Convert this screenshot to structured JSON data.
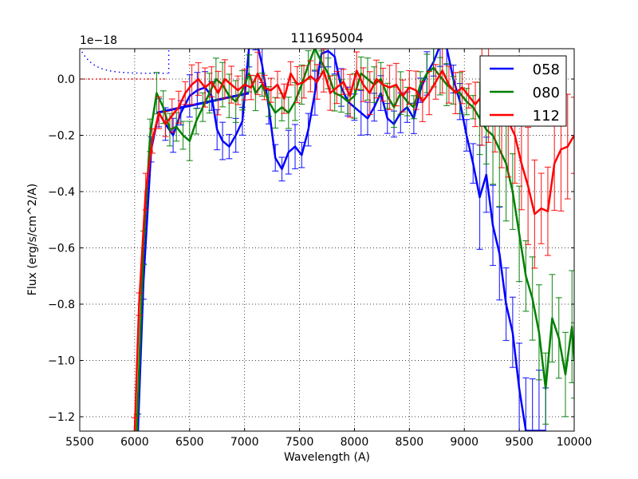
{
  "chart_data": {
    "type": "line",
    "title": "111695004",
    "xlabel": "Wavelength (A)",
    "ylabel": "Flux (erg/s/cm^2/A)",
    "y_offset_label": "1e−18",
    "xlim": [
      5500,
      10000
    ],
    "ylim": [
      -1.25,
      0.11
    ],
    "grid": true,
    "legend_position": "upper right",
    "x_ticks": [
      5500,
      6000,
      6500,
      7000,
      7500,
      8000,
      8500,
      9000,
      9500,
      10000
    ],
    "x_tick_labels": [
      "5500",
      "6000",
      "6500",
      "7000",
      "7500",
      "8000",
      "8500",
      "9000",
      "9500",
      "10000"
    ],
    "y_ticks": [
      0.0,
      -0.2,
      -0.4,
      -0.6,
      -0.8,
      -1.0,
      -1.2
    ],
    "y_tick_labels": [
      "0.0",
      "−0.2",
      "−0.4",
      "−0.6",
      "−0.8",
      "−1.0",
      "−1.2"
    ],
    "series": [
      {
        "name": "058",
        "color": "#0000ff",
        "x": [
          6030,
          6080,
          6150,
          6220,
          6280,
          6350,
          6420,
          6500,
          6570,
          6640,
          6700,
          6750,
          6800,
          6860,
          6920,
          6980,
          7040,
          7100,
          7160,
          7220,
          7280,
          7340,
          7400,
          7460,
          7520,
          7580,
          7640,
          7700,
          7760,
          7820,
          7880,
          7940,
          8000,
          8060,
          8120,
          8180,
          8240,
          8300,
          8360,
          8420,
          8480,
          8540,
          8600,
          8660,
          8720,
          8780,
          8840,
          8900,
          8960,
          9020,
          9080,
          9140,
          9200,
          9260,
          9320,
          9380,
          9440,
          9500,
          9560,
          9620,
          9680,
          9740
        ],
        "y": [
          -1.25,
          -0.72,
          -0.25,
          -0.12,
          -0.16,
          -0.2,
          -0.12,
          -0.06,
          -0.04,
          -0.03,
          -0.06,
          -0.18,
          -0.22,
          -0.24,
          -0.2,
          -0.15,
          0.11,
          0.15,
          0.05,
          -0.1,
          -0.28,
          -0.32,
          -0.26,
          -0.24,
          -0.27,
          -0.18,
          -0.05,
          0.09,
          0.1,
          0.08,
          -0.03,
          -0.08,
          -0.1,
          -0.12,
          -0.14,
          -0.1,
          -0.05,
          -0.14,
          -0.16,
          -0.12,
          -0.1,
          -0.14,
          -0.04,
          0.02,
          0.06,
          0.12,
          0.11,
          0.0,
          -0.08,
          -0.2,
          -0.3,
          -0.42,
          -0.34,
          -0.52,
          -0.62,
          -0.8,
          -0.9,
          -1.1,
          -1.25,
          -1.25,
          -1.25,
          -1.25
        ],
        "line_width": 2.5,
        "has_error_bars": true,
        "notes": "A straight connector line runs from ~6200 (-0.12) to ~7040 (-0.05); dotted blue model curve at top-left from 5500 to 6300 near y=0.02-0.1"
      },
      {
        "name": "080",
        "color": "#008000",
        "x": [
          6020,
          6080,
          6140,
          6200,
          6260,
          6320,
          6380,
          6440,
          6500,
          6560,
          6620,
          6680,
          6740,
          6800,
          6860,
          6920,
          6980,
          7040,
          7100,
          7160,
          7220,
          7280,
          7340,
          7400,
          7460,
          7520,
          7580,
          7640,
          7700,
          7760,
          7820,
          7880,
          7940,
          8000,
          8060,
          8120,
          8180,
          8240,
          8300,
          8360,
          8420,
          8480,
          8540,
          8600,
          8660,
          8720,
          8780,
          8840,
          8900,
          8960,
          9020,
          9080,
          9140,
          9200,
          9260,
          9320,
          9380,
          9440,
          9500,
          9560,
          9620,
          9680,
          9740,
          9800,
          9860,
          9920,
          9980,
          10000
        ],
        "y": [
          -1.25,
          -0.6,
          -0.2,
          -0.05,
          -0.1,
          -0.18,
          -0.17,
          -0.2,
          -0.22,
          -0.15,
          -0.1,
          -0.05,
          0.0,
          -0.02,
          -0.06,
          -0.08,
          -0.04,
          0.02,
          -0.05,
          -0.02,
          -0.08,
          -0.12,
          -0.1,
          -0.12,
          -0.08,
          -0.02,
          0.05,
          0.11,
          0.06,
          0.02,
          -0.05,
          -0.06,
          -0.08,
          -0.06,
          0.02,
          0.0,
          -0.02,
          0.0,
          -0.06,
          -0.1,
          -0.05,
          -0.08,
          -0.1,
          -0.02,
          0.02,
          0.04,
          0.01,
          -0.02,
          -0.04,
          -0.05,
          -0.08,
          -0.1,
          -0.14,
          -0.18,
          -0.2,
          -0.25,
          -0.3,
          -0.4,
          -0.55,
          -0.7,
          -0.78,
          -0.9,
          -1.1,
          -0.85,
          -0.92,
          -1.05,
          -0.88,
          -1.0
        ],
        "line_width": 2.5,
        "has_error_bars": true
      },
      {
        "name": "112",
        "color": "#ff0000",
        "x": [
          6000,
          6040,
          6100,
          6160,
          6220,
          6280,
          6340,
          6400,
          6460,
          6520,
          6580,
          6640,
          6700,
          6760,
          6820,
          6880,
          6940,
          7000,
          7060,
          7120,
          7180,
          7240,
          7300,
          7360,
          7420,
          7480,
          7540,
          7600,
          7660,
          7720,
          7780,
          7840,
          7900,
          7960,
          8020,
          8080,
          8140,
          8200,
          8260,
          8320,
          8380,
          8440,
          8500,
          8560,
          8620,
          8680,
          8740,
          8800,
          8860,
          8920,
          8980,
          9040,
          9100,
          9160,
          9220,
          9280,
          9340,
          9400,
          9460,
          9520,
          9580,
          9640,
          9700,
          9760,
          9820,
          9880,
          9940,
          10000
        ],
        "y": [
          -1.25,
          -0.8,
          -0.4,
          -0.22,
          -0.12,
          -0.16,
          -0.13,
          -0.1,
          -0.05,
          -0.02,
          0.0,
          -0.03,
          -0.01,
          -0.05,
          0.0,
          -0.02,
          -0.04,
          -0.02,
          -0.03,
          0.02,
          -0.03,
          -0.04,
          -0.02,
          -0.07,
          0.02,
          -0.02,
          -0.01,
          0.01,
          -0.01,
          0.03,
          -0.05,
          -0.03,
          -0.01,
          -0.06,
          0.03,
          -0.02,
          -0.05,
          0.0,
          -0.02,
          -0.03,
          -0.02,
          -0.06,
          -0.03,
          -0.04,
          -0.08,
          -0.05,
          -0.01,
          0.03,
          -0.02,
          -0.05,
          -0.03,
          -0.06,
          -0.09,
          -0.06,
          -0.04,
          -0.1,
          -0.12,
          -0.15,
          -0.2,
          -0.3,
          -0.38,
          -0.48,
          -0.46,
          -0.47,
          -0.3,
          -0.25,
          -0.24,
          -0.2
        ],
        "line_width": 2.5,
        "has_error_bars": true,
        "notes": "Dotted red line along y=0 from 5500 to ~6300"
      }
    ],
    "legend": [
      {
        "label": "058",
        "color": "#0000ff"
      },
      {
        "label": "080",
        "color": "#008000"
      },
      {
        "label": "112",
        "color": "#ff0000"
      }
    ]
  }
}
